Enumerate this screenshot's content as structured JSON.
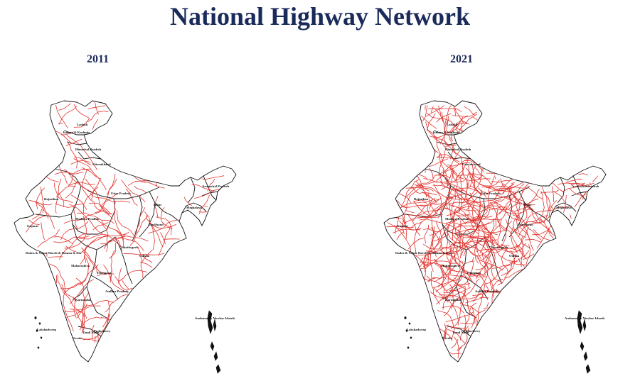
{
  "title": "National Highway Network",
  "colors": {
    "title": "#1a2a5a",
    "boundary": "#111111",
    "highway": "#e0322d"
  },
  "maps": [
    {
      "year": "2011",
      "highway_density": "lower",
      "labels": {
        "ladakh": "Ladakh",
        "jk": "Jammu & Kashmir",
        "hp": "Himachal Pradesh",
        "uttarakhand": "Uttarakhand",
        "rajasthan": "Rajasthan",
        "up": "Uttar Pradesh",
        "bihar": "Bihar",
        "arunachal": "Arunachal Pradesh",
        "meghalaya": "Meghalaya",
        "mp": "Madhya Pradesh",
        "gujarat": "Gujarat",
        "jharkhand": "Jharkhand",
        "chhattisgarh": "Chhattisgarh",
        "odisha": "Odisha",
        "dnh": "Dadra & Nagar Haveli & Daman & Diu",
        "maharashtra": "Maharashtra",
        "telangana": "Telangana",
        "ap": "Andhra Pradesh",
        "karnataka": "Karnataka",
        "lakshadweep": "Lakshadweep",
        "tn": "Tamil Nadu",
        "puducherry": "Puducherry",
        "kerala": "Kerala",
        "andaman": "Andaman & Nicobar Islands"
      }
    },
    {
      "year": "2021",
      "highway_density": "higher",
      "labels": {
        "ladakh": "Ladakh",
        "jk": "Jammu & Kashmir",
        "hp": "Himachal Pradesh",
        "uttarakhand": "Uttarakhand",
        "rajasthan": "Rajasthan",
        "up": "Uttar Pradesh",
        "bihar": "Bihar",
        "arunachal": "Arunachal Pradesh",
        "meghalaya": "Meghalaya",
        "mp": "Madhya Pradesh",
        "gujarat": "Gujarat",
        "jharkhand": "Jharkhand",
        "chhattisgarh": "Chhattisgarh",
        "odisha": "Odisha",
        "dnh": "Dadra & Nagar Haveli & Daman & Diu",
        "maharashtra": "Maharashtra",
        "telangana": "Telangana",
        "ap": "Andhra Pradesh",
        "karnataka": "Karnataka",
        "lakshadweep": "Lakshadweep",
        "tn": "Tamil Nadu",
        "puducherry": "Puducherry",
        "kerala": "Kerala",
        "andaman": "Andaman & Nicobar Islands"
      }
    }
  ]
}
